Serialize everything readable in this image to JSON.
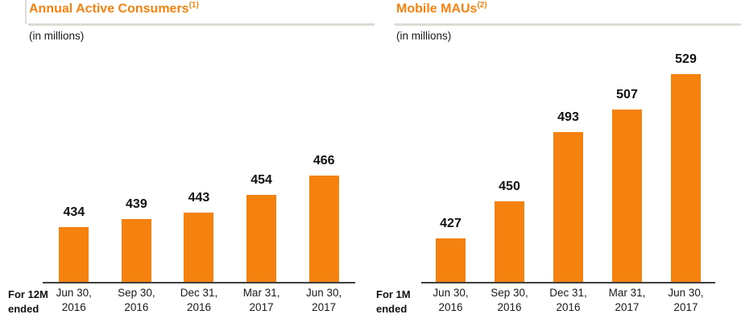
{
  "page": {
    "background": "#FFFFFF",
    "accent_orange": "#F5820F",
    "divider_gray": "#DFDBD4",
    "axis_color": "#404040",
    "text_color": "#1A1A1A"
  },
  "chart_data": [
    {
      "type": "bar",
      "title": "Annual Active Consumers",
      "title_superscript": "(1)",
      "subtitle": "(in millions)",
      "period_label_lines": [
        "For 12M",
        "ended"
      ],
      "categories": [
        [
          "Jun 30,",
          "2016"
        ],
        [
          "Sep 30,",
          "2016"
        ],
        [
          "Dec 31,",
          "2016"
        ],
        [
          "Mar 31,",
          "2017"
        ],
        [
          "Jun 30,",
          "2017"
        ]
      ],
      "values": [
        434,
        439,
        443,
        454,
        466
      ],
      "ylim": [
        400,
        470
      ],
      "bar_color": "#F5820F",
      "grid": false,
      "legend": "none",
      "value_labels": true,
      "xlabel": "",
      "ylabel": ""
    },
    {
      "type": "bar",
      "title": "Mobile MAUs",
      "title_superscript": "(2)",
      "subtitle": "(in millions)",
      "period_label_lines": [
        "For 1M",
        "ended"
      ],
      "categories": [
        [
          "Jun 30,",
          "2016"
        ],
        [
          "Sep 30,",
          "2016"
        ],
        [
          "Dec 31,",
          "2016"
        ],
        [
          "Mar 31,",
          "2017"
        ],
        [
          "Jun 30,",
          "2017"
        ]
      ],
      "values": [
        427,
        450,
        493,
        507,
        529
      ],
      "ylim": [
        400,
        535
      ],
      "bar_color": "#F5820F",
      "grid": false,
      "legend": "none",
      "value_labels": true,
      "xlabel": "",
      "ylabel": ""
    }
  ]
}
